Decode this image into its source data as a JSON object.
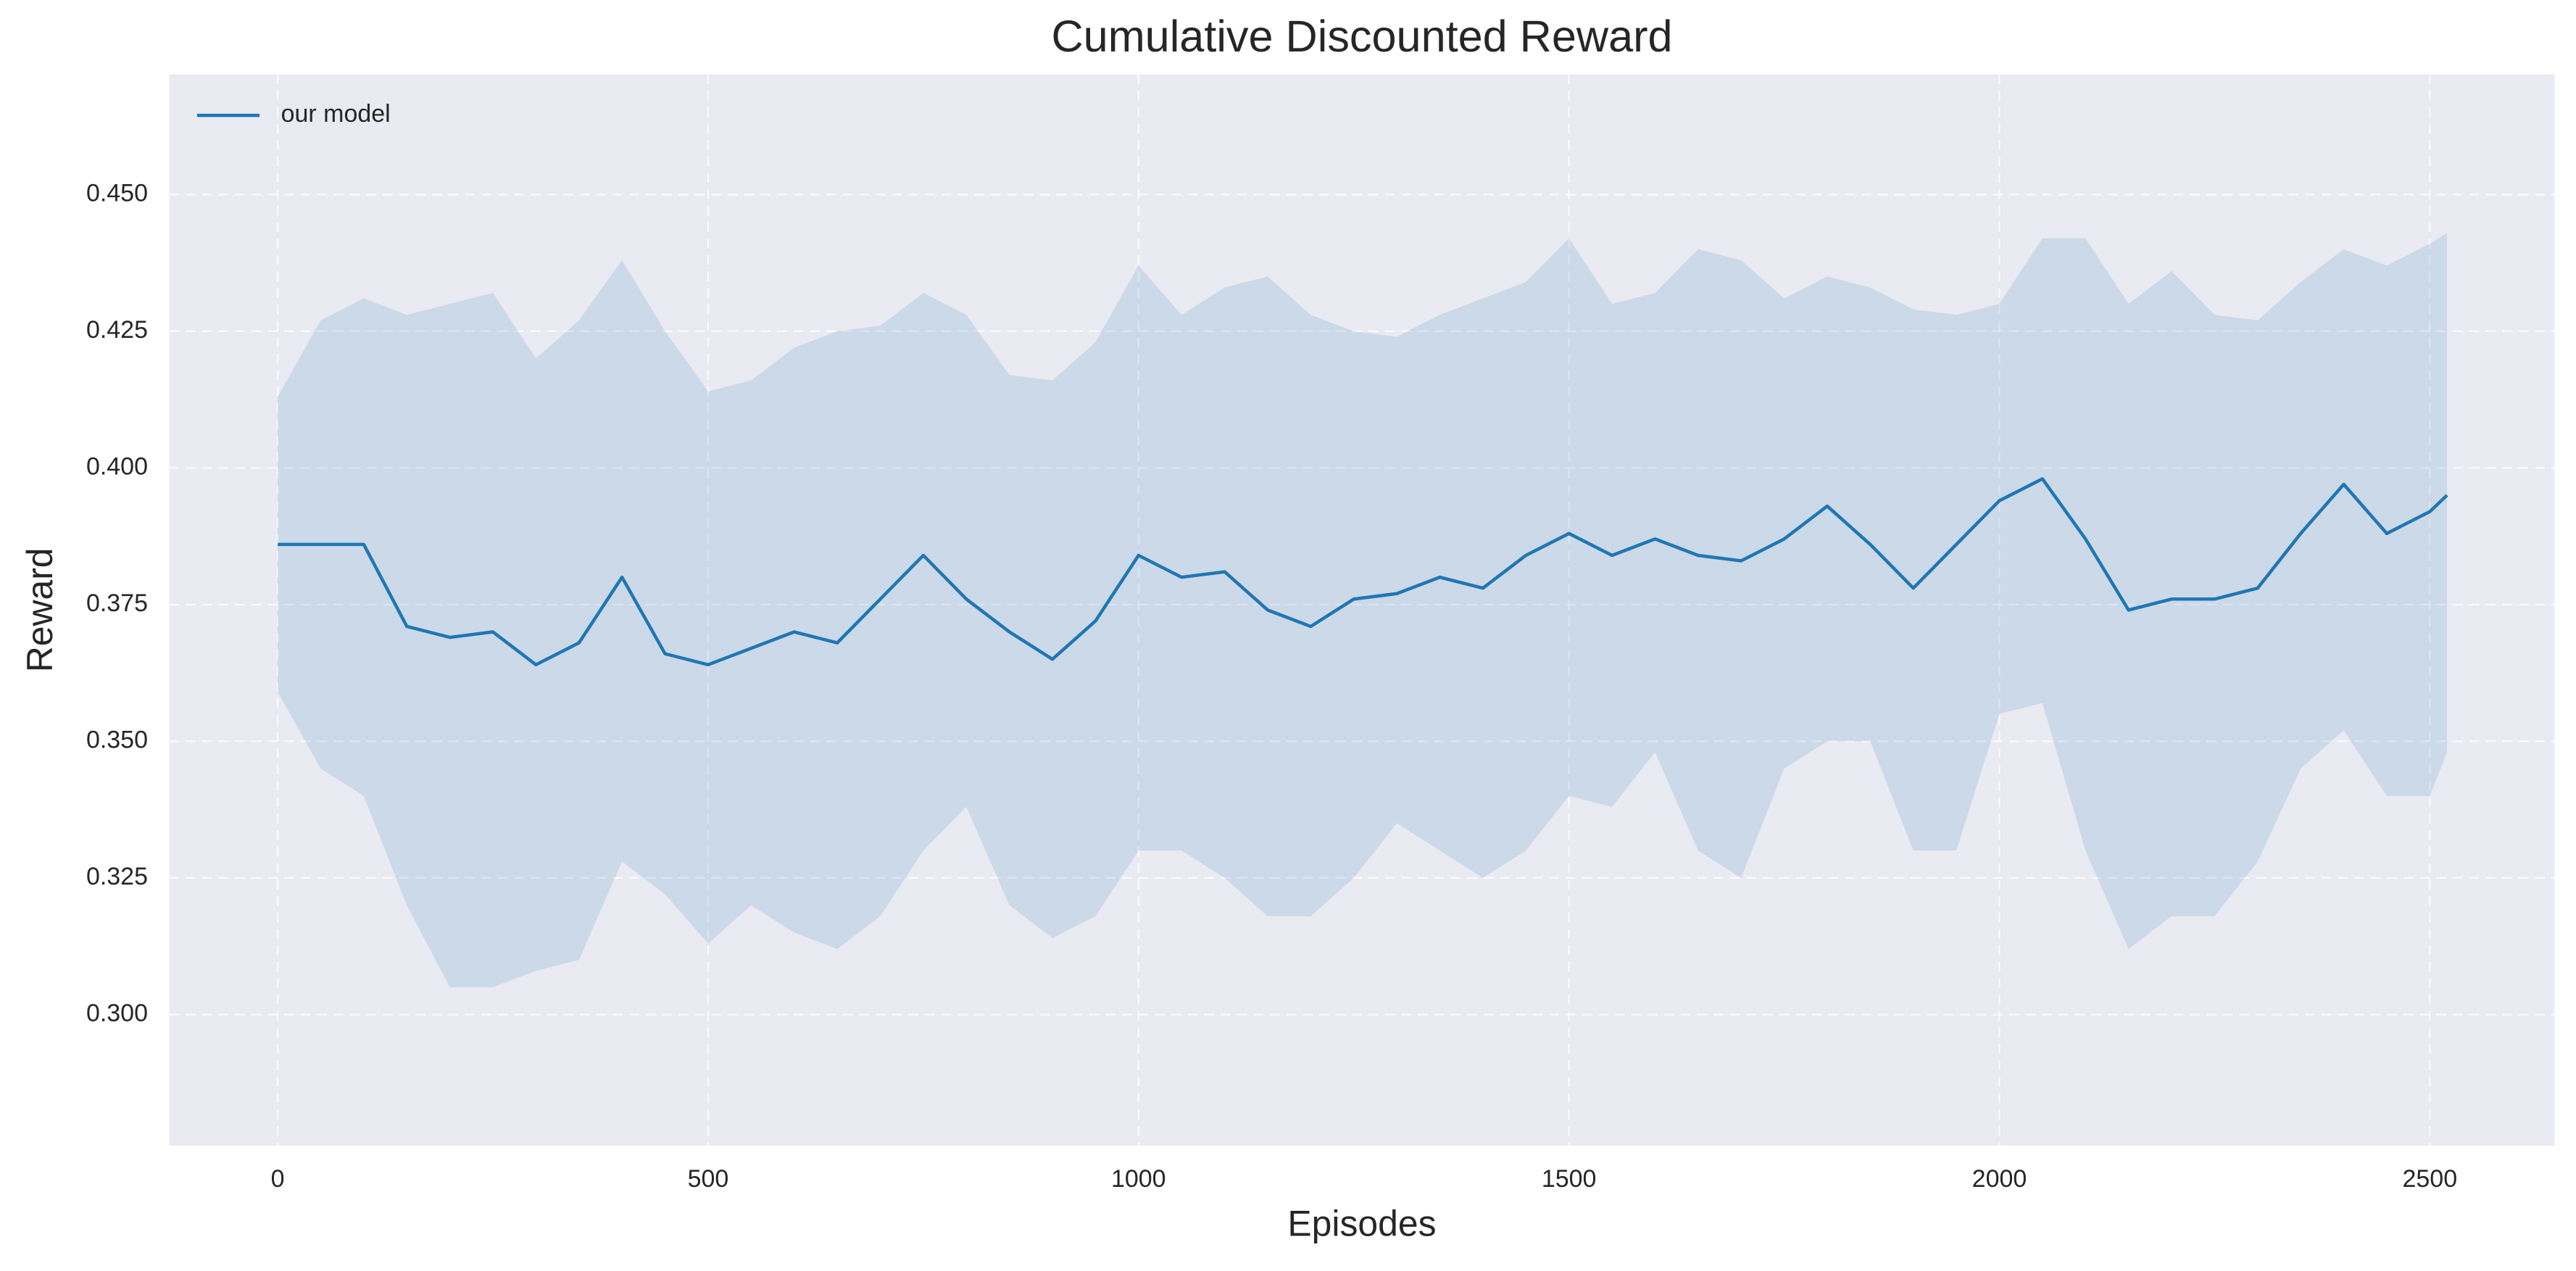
{
  "chart_data": {
    "type": "line",
    "title": "Cumulative Discounted Reward",
    "x_label": "Episodes",
    "y_label": "Reward",
    "x": [
      0,
      50,
      100,
      150,
      200,
      250,
      300,
      350,
      400,
      450,
      500,
      550,
      600,
      650,
      700,
      750,
      800,
      850,
      900,
      950,
      1000,
      1050,
      1100,
      1150,
      1200,
      1250,
      1300,
      1350,
      1400,
      1450,
      1500,
      1550,
      1600,
      1650,
      1700,
      1750,
      1800,
      1850,
      1900,
      1950,
      2000,
      2050,
      2100,
      2150,
      2200,
      2250,
      2300,
      2350,
      2400,
      2450,
      2500,
      2520
    ],
    "series": [
      {
        "name": "our model",
        "color": "#1f77b4",
        "values": [
          0.386,
          0.386,
          0.386,
          0.371,
          0.369,
          0.37,
          0.364,
          0.368,
          0.38,
          0.366,
          0.364,
          0.367,
          0.37,
          0.368,
          0.376,
          0.384,
          0.376,
          0.37,
          0.365,
          0.372,
          0.384,
          0.38,
          0.381,
          0.374,
          0.371,
          0.376,
          0.377,
          0.38,
          0.378,
          0.384,
          0.388,
          0.384,
          0.387,
          0.384,
          0.383,
          0.387,
          0.393,
          0.386,
          0.378,
          0.386,
          0.394,
          0.398,
          0.387,
          0.374,
          0.376,
          0.376,
          0.378,
          0.388,
          0.397,
          0.388,
          0.392,
          0.395
        ],
        "lower": [
          0.359,
          0.345,
          0.34,
          0.32,
          0.305,
          0.305,
          0.308,
          0.31,
          0.328,
          0.322,
          0.313,
          0.32,
          0.315,
          0.312,
          0.318,
          0.33,
          0.338,
          0.32,
          0.314,
          0.318,
          0.33,
          0.33,
          0.325,
          0.318,
          0.318,
          0.325,
          0.335,
          0.33,
          0.325,
          0.33,
          0.34,
          0.338,
          0.348,
          0.33,
          0.325,
          0.345,
          0.35,
          0.35,
          0.33,
          0.33,
          0.355,
          0.357,
          0.33,
          0.312,
          0.318,
          0.318,
          0.328,
          0.345,
          0.352,
          0.34,
          0.34,
          0.348
        ],
        "upper": [
          0.413,
          0.427,
          0.431,
          0.428,
          0.43,
          0.432,
          0.42,
          0.427,
          0.438,
          0.425,
          0.414,
          0.416,
          0.422,
          0.425,
          0.426,
          0.432,
          0.428,
          0.417,
          0.416,
          0.423,
          0.437,
          0.428,
          0.433,
          0.435,
          0.428,
          0.425,
          0.424,
          0.428,
          0.431,
          0.434,
          0.442,
          0.43,
          0.432,
          0.44,
          0.438,
          0.431,
          0.435,
          0.433,
          0.429,
          0.428,
          0.43,
          0.442,
          0.442,
          0.43,
          0.436,
          0.428,
          0.427,
          0.434,
          0.44,
          0.437,
          0.441,
          0.443
        ]
      }
    ],
    "xlim": [
      -126,
      2645
    ],
    "ylim": [
      0.276,
      0.472
    ],
    "xticks": [
      0,
      500,
      1000,
      1500,
      2000,
      2500
    ],
    "yticks": [
      {
        "value": 0.3,
        "label": "0.300"
      },
      {
        "value": 0.325,
        "label": "0.325"
      },
      {
        "value": 0.35,
        "label": "0.350"
      },
      {
        "value": 0.375,
        "label": "0.375"
      },
      {
        "value": 0.4,
        "label": "0.400"
      },
      {
        "value": 0.425,
        "label": "0.425"
      },
      {
        "value": 0.45,
        "label": "0.450"
      }
    ],
    "grid": true,
    "legend": "upper left",
    "background": "#eaeaf2"
  }
}
